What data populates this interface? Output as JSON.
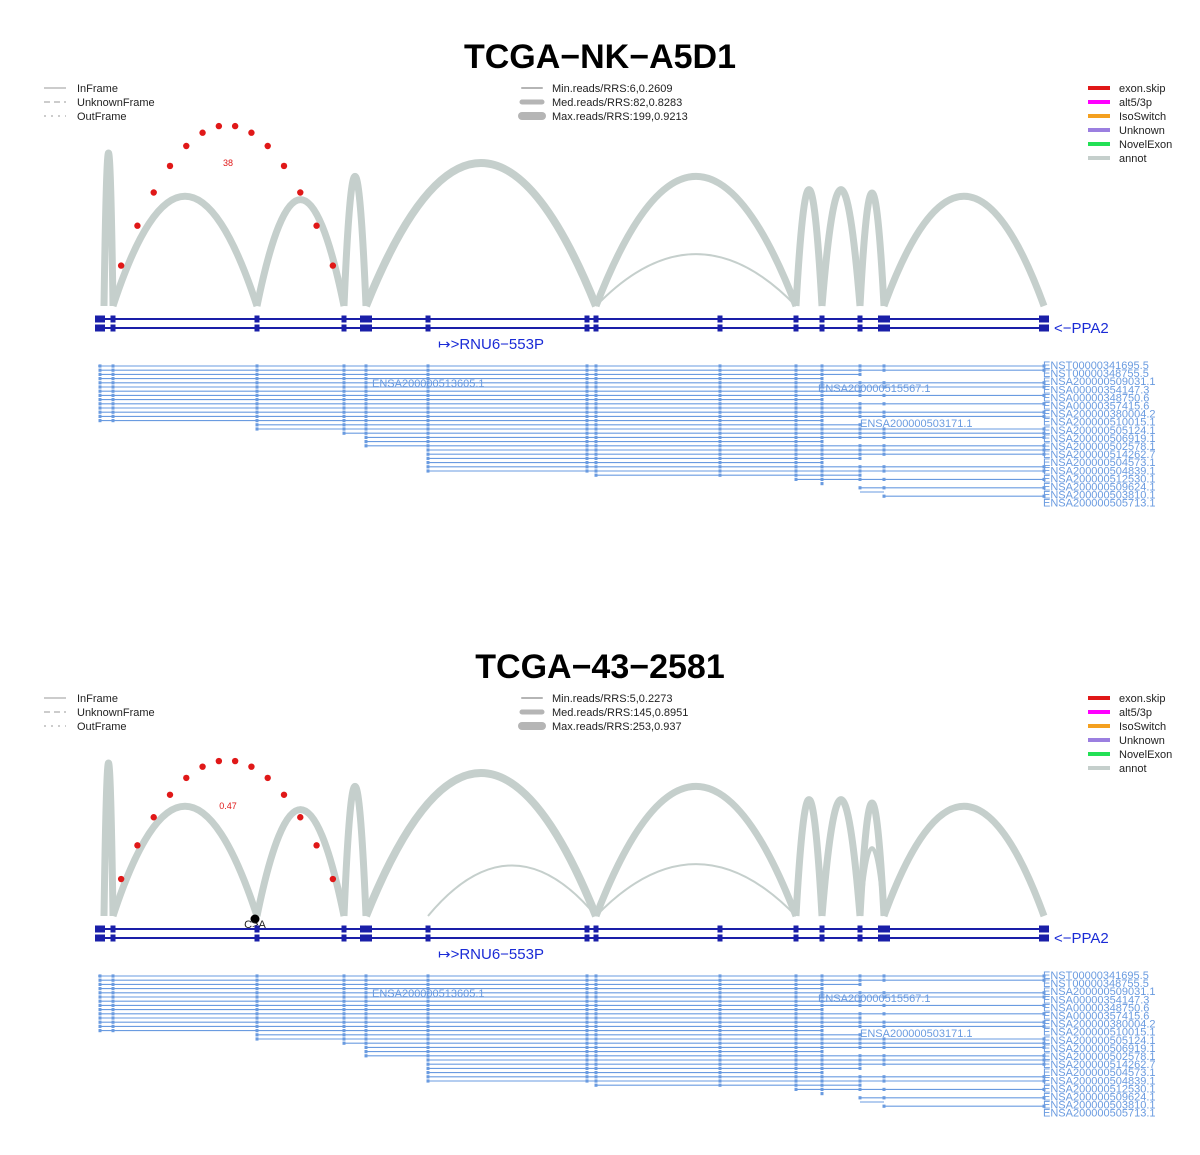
{
  "panels": [
    {
      "title": "TCGA−NK−A5D1",
      "frame_legend": [
        "InFrame",
        "UnknownFrame",
        "OutFrame"
      ],
      "reads_legend": [
        "Min.reads/RRS:6,0.2609",
        "Med.reads/RRS:82,0.8283",
        "Max.reads/RRS:199,0.9213"
      ],
      "event_legend": [
        {
          "label": "exon.skip",
          "color": "#e01818"
        },
        {
          "label": "alt5/3p",
          "color": "#ff00ff"
        },
        {
          "label": "IsoSwitch",
          "color": "#f4a020"
        },
        {
          "label": "Unknown",
          "color": "#9b7fe0"
        },
        {
          "label": "NovelExon",
          "color": "#22e055"
        },
        {
          "label": "annot",
          "color": "#c5cfcc"
        }
      ],
      "annotation": "38",
      "mutation": "",
      "genes": {
        "main": "<−PPA2",
        "secondary": "↦>RNU6−553P"
      },
      "transcripts_inline": [
        "ENSA200000513605.1",
        "ENSA200000515567.1",
        "ENSA200000503171.1"
      ],
      "transcripts_right": [
        "ENST00000341695.5",
        "ENST00000348755.5",
        "ENSA200000509031.1",
        "ENSA00000354147.3",
        "ENSA00000348750.6",
        "ENSA00000357415.6",
        "ENSA200000380004.2",
        "ENSA200000510015.1",
        "ENSA200000505124.1",
        "ENSA200000506919.1",
        "ENSA200000502578.1",
        "ENSA200000514262.7",
        "ENSA200000504573.1",
        "ENSA200000504839.1",
        "ENSA200000512530.1",
        "ENSA200000509624.1",
        "ENSA200000503810.1",
        "ENSA200000505713.1"
      ]
    },
    {
      "title": "TCGA−43−2581",
      "frame_legend": [
        "InFrame",
        "UnknownFrame",
        "OutFrame"
      ],
      "reads_legend": [
        "Min.reads/RRS:5,0.2273",
        "Med.reads/RRS:145,0.8951",
        "Max.reads/RRS:253,0.937"
      ],
      "event_legend": [
        {
          "label": "exon.skip",
          "color": "#e01818"
        },
        {
          "label": "alt5/3p",
          "color": "#ff00ff"
        },
        {
          "label": "IsoSwitch",
          "color": "#f4a020"
        },
        {
          "label": "Unknown",
          "color": "#9b7fe0"
        },
        {
          "label": "NovelExon",
          "color": "#22e055"
        },
        {
          "label": "annot",
          "color": "#c5cfcc"
        }
      ],
      "annotation": "0.47",
      "mutation": "C>A",
      "genes": {
        "main": "<−PPA2",
        "secondary": "↦>RNU6−553P"
      },
      "transcripts_inline": [
        "ENSA200000513605.1",
        "ENSA200000515567.1",
        "ENSA200000503171.1"
      ],
      "transcripts_right": [
        "ENST00000341695.5",
        "ENST00000348755.5",
        "ENSA200000509031.1",
        "ENSA00000354147.3",
        "ENSA00000348750.6",
        "ENSA00000357415.6",
        "ENSA200000380004.2",
        "ENSA200000510015.1",
        "ENSA200000505124.1",
        "ENSA200000506919.1",
        "ENSA200000502578.1",
        "ENSA200000514262.7",
        "ENSA200000504573.1",
        "ENSA200000504839.1",
        "ENSA200000512530.1",
        "ENSA200000509624.1",
        "ENSA200000503810.1",
        "ENSA200000505713.1"
      ]
    }
  ]
}
